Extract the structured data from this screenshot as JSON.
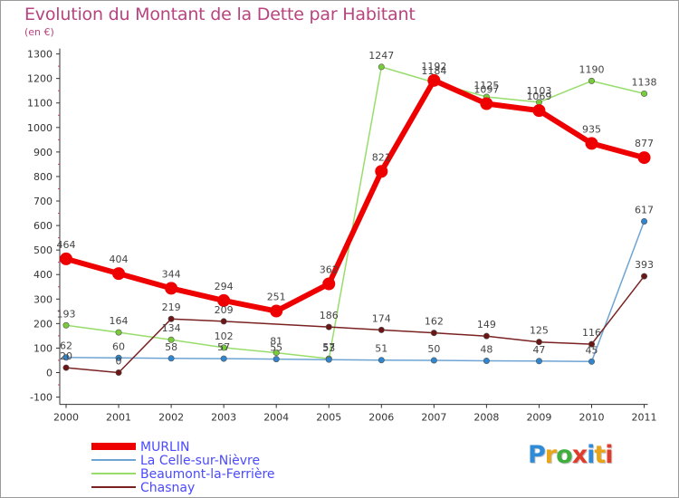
{
  "header": {
    "title": "Evolution du Montant de la Dette par Habitant",
    "subtitle": "(en €)"
  },
  "logo": {
    "text": "Proxiti",
    "colors": [
      "#2f8ad8",
      "#e8a51a",
      "#3fae3f",
      "#e03c2c",
      "#2f8ad8",
      "#e8a51a",
      "#e03c2c"
    ]
  },
  "chart_data": {
    "type": "line",
    "title": "Evolution du Montant de la Dette par Habitant",
    "subtitle": "(en €)",
    "x": [
      "2000",
      "2001",
      "2002",
      "2003",
      "2004",
      "2005",
      "2006",
      "2007",
      "2008",
      "2009",
      "2010",
      "2011"
    ],
    "yticks": [
      "-100",
      "0",
      "100",
      "200",
      "300",
      "400",
      "500",
      "600",
      "700",
      "800",
      "900",
      "1000",
      "1100",
      "1200",
      "1300"
    ],
    "ylim": [
      -100,
      1300
    ],
    "grid": false,
    "legend_position": "bottom-left",
    "series": [
      {
        "name": "MURLIN",
        "color": "#ee0000",
        "point_color": "#ee0000",
        "width": 6,
        "marker": 7,
        "values": [
          464,
          404,
          344,
          294,
          251,
          362,
          821,
          1192,
          1097,
          1069,
          935,
          877
        ],
        "labels": [
          "464",
          "404",
          "344",
          "294",
          "251",
          "362",
          "821",
          "1192",
          "1097",
          "1069",
          "935",
          "877"
        ]
      },
      {
        "name": "La Celle-sur-Nièvre",
        "color": "#6ea4d3",
        "point_color": "#2f86cf",
        "width": 1.5,
        "marker": 3.2,
        "values": [
          62,
          60,
          58,
          57,
          55,
          53,
          51,
          50,
          48,
          47,
          45,
          617
        ],
        "labels": [
          "62",
          "60",
          "58",
          "57",
          "55",
          "53",
          "51",
          "50",
          "48",
          "47",
          "45",
          "617"
        ]
      },
      {
        "name": "Beaumont-la-Ferrière",
        "color": "#98dd6c",
        "point_color": "#78cc3c",
        "width": 1.5,
        "marker": 3.2,
        "values": [
          193,
          164,
          134,
          102,
          81,
          57,
          1247,
          1184,
          1125,
          1103,
          1190,
          1138
        ],
        "labels": [
          "193",
          "164",
          "134",
          "102",
          "81",
          "57",
          "1247",
          "1184",
          "1125",
          "1103",
          "1190",
          "1138"
        ]
      },
      {
        "name": "Chasnay",
        "color": "#7a2222",
        "point_color": "#6b1515",
        "width": 1.5,
        "marker": 3.2,
        "values": [
          20,
          0,
          219,
          209,
          null,
          186,
          174,
          162,
          149,
          125,
          116,
          393
        ],
        "labels": [
          "20",
          "0",
          "219",
          "209",
          "",
          "186",
          "174",
          "162",
          "149",
          "125",
          "116",
          "393"
        ]
      }
    ]
  }
}
